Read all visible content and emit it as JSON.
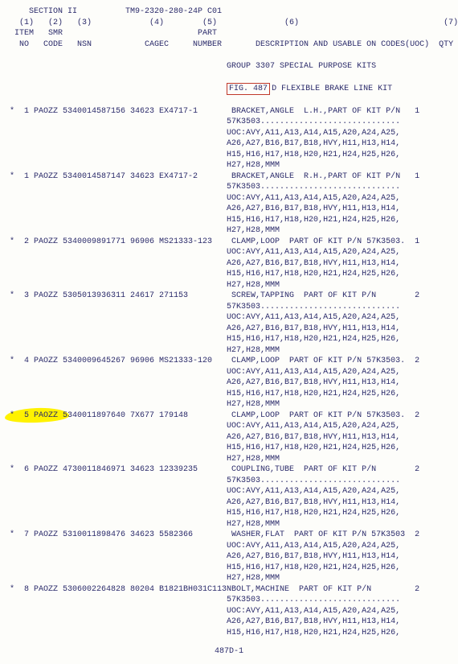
{
  "header": {
    "section": "SECTION II",
    "tm": "TM9-2320-280-24P C01",
    "cols_numline": "  (1)   (2)   (3)            (4)        (5)              (6)                              (7)",
    "cols_l1": " ITEM   SMR                            PART",
    "cols_l2": "  NO   CODE   NSN           CAGEC     NUMBER       DESCRIPTION AND USABLE ON CODES(UOC)  QTY",
    "group": "GROUP 3307 SPECIAL PURPOSE KITS",
    "fig_label": "FIG. 487",
    "fig_rest": "D FLEXIBLE BRAKE LINE KIT"
  },
  "uoc": "UOC:AVY,A11,A13,A14,A15,A20,A24,A25,\nA26,A27,B16,B17,B18,HVY,H11,H13,H14,\nH15,H16,H17,H18,H20,H21,H24,H25,H26,\nH27,H28,MMM",
  "rows": [
    {
      "star": "*",
      "item": "1",
      "smr": "PAOZZ",
      "nsn": "5340014587156",
      "cagec": "34623",
      "part": "EX4717-1",
      "desc": "BRACKET,ANGLE  L.H.,PART OF KIT P/N",
      "dots": "57K3503.............................",
      "qty": "1"
    },
    {
      "star": "*",
      "item": "1",
      "smr": "PAOZZ",
      "nsn": "5340014587147",
      "cagec": "34623",
      "part": "EX4717-2",
      "desc": "BRACKET,ANGLE  R.H.,PART OF KIT P/N",
      "dots": "57K3503.............................",
      "qty": "1"
    },
    {
      "star": "*",
      "item": "2",
      "smr": "PAOZZ",
      "nsn": "5340009891771",
      "cagec": "96906",
      "part": "MS21333-123",
      "desc": "CLAMP,LOOP  PART OF KIT P/N 57K3503.",
      "dots": "",
      "qty": "1"
    },
    {
      "star": "*",
      "item": "3",
      "smr": "PAOZZ",
      "nsn": "5305013936311",
      "cagec": "24617",
      "part": "271153",
      "desc": "SCREW,TAPPING  PART OF KIT P/N",
      "dots": "57K3503.............................",
      "qty": "2"
    },
    {
      "star": "*",
      "item": "4",
      "smr": "PAOZZ",
      "nsn": "5340009645267",
      "cagec": "96906",
      "part": "MS21333-120",
      "desc": "CLAMP,LOOP  PART OF KIT P/N 57K3503.",
      "dots": "",
      "qty": "2"
    },
    {
      "star": "*",
      "item": "5",
      "smr": "PAOZZ",
      "nsn": "5340011897640",
      "cagec": "7X677",
      "part": "179148",
      "desc": "CLAMP,LOOP  PART OF KIT P/N 57K3503.",
      "dots": "",
      "qty": "2",
      "highlight": true
    },
    {
      "star": "*",
      "item": "6",
      "smr": "PAOZZ",
      "nsn": "4730011846971",
      "cagec": "34623",
      "part": "12339235",
      "desc": "COUPLING,TUBE  PART OF KIT P/N",
      "dots": "57K3503.............................",
      "qty": "2"
    },
    {
      "star": "*",
      "item": "7",
      "smr": "PAOZZ",
      "nsn": "5310011898476",
      "cagec": "34623",
      "part": "5582366",
      "desc": "WASHER,FLAT  PART OF KIT P/N 57K3503",
      "dots": "",
      "qty": "2"
    },
    {
      "star": "*",
      "item": "8",
      "smr": "PAOZZ",
      "nsn": "5306002264828",
      "cagec": "80204",
      "part": "B1821BH031C113N",
      "desc": "BOLT,MACHINE  PART OF KIT P/N",
      "dots": "57K3503.............................",
      "qty": "2"
    }
  ],
  "uoc_last_trunc": "UOC:AVY,A11,A13,A14,A15,A20,A24,A25,\nA26,A27,B16,B17,B18,HVY,H11,H13,H14,\nH15,H16,H17,H18,H20,H21,H24,H25,H26,",
  "footer": "487D-1"
}
